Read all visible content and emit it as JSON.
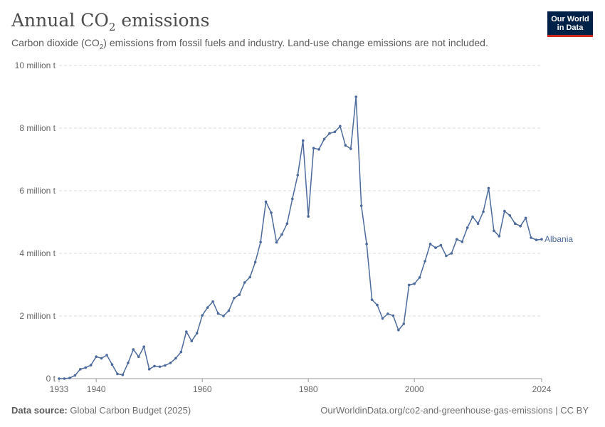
{
  "header": {
    "title_main": "Annual CO",
    "title_sub": "2",
    "title_tail": " emissions",
    "subtitle_a": "Carbon dioxide (CO",
    "subtitle_sub": "2",
    "subtitle_b": ") emissions from fossil fuels and industry. Land-use change emissions are not included."
  },
  "logo": {
    "line1": "Our World",
    "line2": "in Data"
  },
  "footer": {
    "source_label": "Data source:",
    "source_value": " Global Carbon Budget (2025)",
    "right_text": "OurWorldinData.org/co2-and-greenhouse-gas-emissions | CC BY"
  },
  "colors": {
    "line": "#4c6a9c",
    "grid": "#dddddd",
    "axis": "#666666"
  },
  "chart_data": {
    "type": "line",
    "title": "Annual CO₂ emissions",
    "ylabel": "",
    "xlabel": "",
    "ylim": [
      0,
      10000000
    ],
    "xlim": [
      1933,
      2024
    ],
    "y_ticks": [
      {
        "value": 0,
        "label": "0 t"
      },
      {
        "value": 2000000,
        "label": "2 million t"
      },
      {
        "value": 4000000,
        "label": "4 million t"
      },
      {
        "value": 6000000,
        "label": "6 million t"
      },
      {
        "value": 8000000,
        "label": "8 million t"
      },
      {
        "value": 10000000,
        "label": "10 million t"
      }
    ],
    "x_ticks": [
      {
        "value": 1933,
        "label": "1933"
      },
      {
        "value": 1940,
        "label": "1940"
      },
      {
        "value": 1960,
        "label": "1960"
      },
      {
        "value": 1980,
        "label": "1980"
      },
      {
        "value": 2000,
        "label": "2000"
      },
      {
        "value": 2024,
        "label": "2024"
      }
    ],
    "series": [
      {
        "name": "Albania",
        "x": [
          1933,
          1934,
          1935,
          1936,
          1937,
          1938,
          1939,
          1940,
          1941,
          1942,
          1943,
          1944,
          1945,
          1946,
          1947,
          1948,
          1949,
          1950,
          1951,
          1952,
          1953,
          1954,
          1955,
          1956,
          1957,
          1958,
          1959,
          1960,
          1961,
          1962,
          1963,
          1964,
          1965,
          1966,
          1967,
          1968,
          1969,
          1970,
          1971,
          1972,
          1973,
          1974,
          1975,
          1976,
          1977,
          1978,
          1979,
          1980,
          1981,
          1982,
          1983,
          1984,
          1985,
          1986,
          1987,
          1988,
          1989,
          1990,
          1991,
          1992,
          1993,
          1994,
          1995,
          1996,
          1997,
          1998,
          1999,
          2000,
          2001,
          2002,
          2003,
          2004,
          2005,
          2006,
          2007,
          2008,
          2009,
          2010,
          2011,
          2012,
          2013,
          2014,
          2015,
          2016,
          2017,
          2018,
          2019,
          2020,
          2021,
          2022,
          2023,
          2024
        ],
        "values": [
          0,
          0,
          20000,
          100000,
          300000,
          350000,
          430000,
          700000,
          650000,
          750000,
          450000,
          150000,
          120000,
          500000,
          930000,
          700000,
          1020000,
          300000,
          400000,
          380000,
          420000,
          500000,
          650000,
          850000,
          1500000,
          1200000,
          1450000,
          2020000,
          2270000,
          2460000,
          2080000,
          2000000,
          2170000,
          2570000,
          2680000,
          3070000,
          3240000,
          3720000,
          4360000,
          5650000,
          5300000,
          4350000,
          4600000,
          4950000,
          5740000,
          6500000,
          7600000,
          5180000,
          7360000,
          7320000,
          7650000,
          7830000,
          7880000,
          8060000,
          7450000,
          7340000,
          9000000,
          5520000,
          4300000,
          2520000,
          2350000,
          1920000,
          2070000,
          2010000,
          1550000,
          1750000,
          2990000,
          3030000,
          3230000,
          3750000,
          4300000,
          4180000,
          4260000,
          3920000,
          4000000,
          4450000,
          4370000,
          4820000,
          5170000,
          4950000,
          5330000,
          6080000,
          4720000,
          4550000,
          5350000,
          5210000,
          4950000,
          4870000,
          5130000,
          4500000,
          4430000,
          4450000
        ]
      }
    ],
    "labels": {
      "series_label": "Albania"
    }
  }
}
